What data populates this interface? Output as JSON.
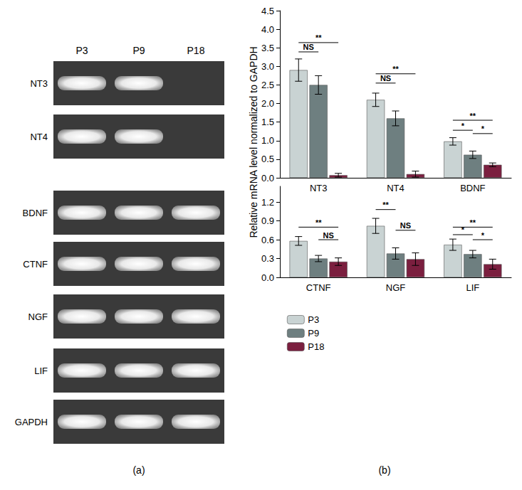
{
  "panels": [
    "(a)",
    "(b)"
  ],
  "gel": {
    "lanes": [
      "P3",
      "P9",
      "P18"
    ],
    "rows": [
      {
        "label": "NT3",
        "bands": [
          true,
          true,
          false
        ]
      },
      {
        "label": "NT4",
        "bands": [
          true,
          true,
          false
        ]
      },
      {
        "label": "BDNF",
        "bands": [
          true,
          true,
          true
        ]
      },
      {
        "label": "CTNF",
        "bands": [
          true,
          true,
          true
        ]
      },
      {
        "label": "NGF",
        "bands": [
          true,
          true,
          true
        ]
      },
      {
        "label": "LIF",
        "bands": [
          true,
          true,
          true
        ]
      },
      {
        "label": "GAPDH",
        "bands": [
          true,
          true,
          true
        ]
      }
    ]
  },
  "ylabel": "Relative mRNA level normalized to GAPDH",
  "chart_data": [
    {
      "type": "bar",
      "categories": [
        "NT3",
        "NT4",
        "BDNF"
      ],
      "ylim": [
        0,
        4.5
      ],
      "yticks": [
        {
          "value": 0,
          "label": "0.0"
        },
        {
          "value": 0.5,
          "label": "0.5"
        },
        {
          "value": 1,
          "label": "1.0"
        },
        {
          "value": 1.5,
          "label": "1.5"
        },
        {
          "value": 2,
          "label": "2.0"
        },
        {
          "value": 2.5,
          "label": "2.5"
        },
        {
          "value": 3,
          "label": "3.0"
        },
        {
          "value": 3.5,
          "label": "3.5"
        },
        {
          "value": 4,
          "label": "4.0"
        },
        {
          "value": 4.5,
          "label": "4.5"
        }
      ],
      "grid": false,
      "series": [
        {
          "name": "P3",
          "color": "#c9d3d3",
          "values": [
            2.9,
            2.1,
            0.98
          ],
          "errors": [
            0.3,
            0.18,
            0.1
          ]
        },
        {
          "name": "P9",
          "color": "#6e7f80",
          "values": [
            2.5,
            1.6,
            0.62
          ],
          "errors": [
            0.25,
            0.2,
            0.1
          ]
        },
        {
          "name": "P18",
          "color": "#7b1f3f",
          "values": [
            0.07,
            0.1,
            0.35
          ],
          "errors": [
            0.05,
            0.08,
            0.05
          ]
        }
      ],
      "annotations": [
        {
          "category": "NT3",
          "from": "P3",
          "to": "P9",
          "y": 3.39,
          "label": "NS"
        },
        {
          "category": "NT3",
          "from": "P3",
          "to": "P18",
          "y": 3.64,
          "label": "**"
        },
        {
          "category": "NT4",
          "from": "P3",
          "to": "P9",
          "y": 2.55,
          "label": "NS"
        },
        {
          "category": "NT4",
          "from": "P3",
          "to": "P18",
          "y": 2.8,
          "label": "**"
        },
        {
          "category": "BDNF",
          "from": "P3",
          "to": "P18",
          "y": 1.55,
          "label": "**"
        },
        {
          "category": "BDNF",
          "from": "P3",
          "to": "P9",
          "y": 1.28,
          "label": "*"
        },
        {
          "category": "BDNF",
          "from": "P9",
          "to": "P18",
          "y": 1.19,
          "label": "*"
        }
      ]
    },
    {
      "type": "bar",
      "categories": [
        "CTNF",
        "NGF",
        "LIF"
      ],
      "ylim": [
        0,
        1.45
      ],
      "yticks": [
        {
          "value": 0,
          "label": "0.0"
        },
        0.3,
        0.6,
        0.9,
        1.2
      ],
      "grid": false,
      "legend": "bottom-left",
      "series": [
        {
          "name": "P3",
          "color": "#c9d3d3",
          "values": [
            0.58,
            0.82,
            0.52
          ],
          "errors": [
            0.07,
            0.12,
            0.09
          ]
        },
        {
          "name": "P9",
          "color": "#6e7f80",
          "values": [
            0.3,
            0.38,
            0.37
          ],
          "errors": [
            0.05,
            0.09,
            0.06
          ]
        },
        {
          "name": "P18",
          "color": "#7b1f3f",
          "values": [
            0.25,
            0.29,
            0.21
          ],
          "errors": [
            0.06,
            0.1,
            0.08
          ]
        }
      ],
      "annotations": [
        {
          "category": "CTNF",
          "from": "P3",
          "to": "P18",
          "y": 0.8,
          "label": "**"
        },
        {
          "category": "CTNF",
          "from": "P9",
          "to": "P18",
          "y": 0.6,
          "label": "NS"
        },
        {
          "category": "NGF",
          "from": "P3",
          "to": "P9",
          "y": 1.08,
          "label": "**"
        },
        {
          "category": "NGF",
          "from": "P9",
          "to": "P18",
          "y": 0.75,
          "label": "NS"
        },
        {
          "category": "LIF",
          "from": "P3",
          "to": "P18",
          "y": 0.8,
          "label": "**"
        },
        {
          "category": "LIF",
          "from": "P3",
          "to": "P9",
          "y": 0.68,
          "label": "*"
        },
        {
          "category": "LIF",
          "from": "P9",
          "to": "P18",
          "y": 0.6,
          "label": "*"
        }
      ]
    }
  ]
}
